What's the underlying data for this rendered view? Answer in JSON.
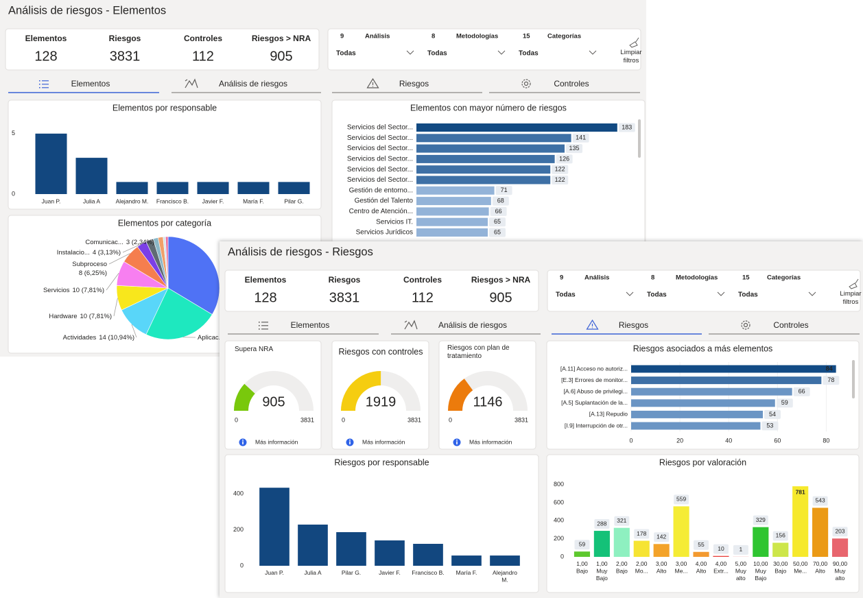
{
  "back": {
    "title": "Análisis de riesgos - Elementos",
    "kpis": [
      {
        "label": "Elementos",
        "value": 128
      },
      {
        "label": "Riesgos",
        "value": 3831
      },
      {
        "label": "Controles",
        "value": 112
      },
      {
        "label": "Riesgos > NRA",
        "value": 905
      }
    ],
    "filters": [
      {
        "count": 9,
        "label": "Análisis",
        "selected": "Todas"
      },
      {
        "count": 8,
        "label": "Metodologías",
        "selected": "Todas"
      },
      {
        "count": 15,
        "label": "Categorías",
        "selected": "Todas"
      }
    ],
    "clear_filters": [
      "Limpiar",
      "filtros"
    ],
    "tabs": [
      "Elementos",
      "Análisis de riesgos",
      "Riesgos",
      "Controles"
    ],
    "charts": [
      {
        "type": "bar",
        "title": "Elementos por responsable",
        "categories": [
          "Juan P.",
          "Julia A",
          "Alejandro M.",
          "Francisco B.",
          "Javier F.",
          "María F.",
          "Pilar G."
        ],
        "values": [
          5,
          3,
          1,
          1,
          1,
          1,
          1
        ],
        "color": "#12477f",
        "ylim": [
          0,
          5.5
        ],
        "yticks": [
          0,
          5
        ]
      },
      {
        "type": "pie",
        "title": "Elementos por categoría",
        "categories": [
          null,
          "Aplicac...",
          "Actividades",
          "Hardware",
          "Servicios",
          "Subproceso",
          "Instalacio...",
          "Comunicac...",
          null,
          null,
          null,
          null
        ],
        "values": [
          43,
          30,
          14,
          10,
          10,
          8,
          4,
          3,
          2,
          2,
          1,
          1
        ],
        "value_labels": [
          null,
          null,
          "14 (10,94%)",
          "10 (7,81%)",
          "10 (7,81%)",
          "8 (6,25%)",
          "4 (3,13%)",
          "3 (2,34%)",
          null,
          null,
          null,
          null
        ],
        "colors": [
          "#4f72f5",
          "#1ee8bf",
          "#59d6f9",
          "#f8e71c",
          "#f77ff0",
          "#f57e4e",
          "#7b3fe6",
          "#5f6b73",
          "#8bb7c7",
          "#f0a06a",
          "#d6e6ef",
          "#e96fa0"
        ]
      },
      {
        "type": "bar",
        "orientation": "horizontal",
        "title": "Elementos con mayor número de riesgos",
        "categories": [
          "Servicios del Sector...",
          "Servicios del Sector...",
          "Servicios del Sector...",
          "Servicios del Sector...",
          "Servicios del Sector...",
          "Servicios del Sector...",
          "Gestión de entorno...",
          "Gestión del Talento",
          "Centro de Atención...",
          "Servicios IT.",
          "Servicios Jurídicos"
        ],
        "values": [
          183,
          141,
          135,
          126,
          122,
          122,
          71,
          68,
          66,
          65,
          65
        ],
        "colors": [
          "#124a82",
          "#3e70a5",
          "#3e70a5",
          "#3e70a5",
          "#3e70a5",
          "#3e70a5",
          "#93b3d8",
          "#93b3d8",
          "#93b3d8",
          "#93b3d8",
          "#93b3d8"
        ],
        "xlim": [
          0,
          200
        ]
      }
    ]
  },
  "front": {
    "title": "Análisis de riesgos - Riesgos",
    "kpis": [
      {
        "label": "Elementos",
        "value": 128
      },
      {
        "label": "Riesgos",
        "value": 3831
      },
      {
        "label": "Controles",
        "value": 112
      },
      {
        "label": "Riesgos > NRA",
        "value": 905
      }
    ],
    "filters": [
      {
        "count": 9,
        "label": "Análisis",
        "selected": "Todas"
      },
      {
        "count": 8,
        "label": "Metodologías",
        "selected": "Todas"
      },
      {
        "count": 15,
        "label": "Categorías",
        "selected": "Todas"
      }
    ],
    "clear_filters": [
      "Limpiar",
      "filtros"
    ],
    "tabs": [
      "Elementos",
      "Análisis de riesgos",
      "Riesgos",
      "Controles"
    ],
    "charts": [
      {
        "type": "gauge",
        "title": [
          "Supera NRA"
        ],
        "value": 905,
        "min": 0,
        "max": 3831,
        "color": "#79c80c",
        "more_info": "Más información"
      },
      {
        "type": "gauge",
        "title": [
          "Riesgos con controles"
        ],
        "value": 1919,
        "min": 0,
        "max": 3831,
        "color": "#f5cd10",
        "more_info": "Más información"
      },
      {
        "type": "gauge",
        "title": [
          "Riesgos con plan de",
          "tratamiento"
        ],
        "value": 1146,
        "min": 0,
        "max": 3831,
        "color": "#ec7b0c",
        "more_info": "Más información"
      },
      {
        "type": "bar",
        "orientation": "horizontal",
        "title": "Riesgos asociados a más elementos",
        "categories": [
          "[A.11] Acceso no autoriz...",
          "[E.3] Errores de monitor...",
          "[A.6] Abuso de privilegi...",
          "[A.5] Suplantación de la...",
          "[A.13] Repudio",
          "[I.9] Interrupción de otr..."
        ],
        "values": [
          84,
          78,
          66,
          59,
          54,
          53
        ],
        "colors": [
          "#124b85",
          "#3e70a6",
          "#6b95c4",
          "#6b95c4",
          "#6b95c4",
          "#6b95c4"
        ],
        "xlim": [
          0,
          90
        ],
        "xticks": [
          0,
          20,
          40,
          60,
          80
        ]
      },
      {
        "type": "bar",
        "title": "Riesgos por responsable",
        "categories": [
          [
            "Juan P."
          ],
          [
            "Julia A"
          ],
          [
            "Pilar G."
          ],
          [
            "Javier F."
          ],
          [
            "Francisco B."
          ],
          [
            "María F."
          ],
          [
            "Alejandro",
            "M."
          ]
        ],
        "values": [
          434,
          229,
          187,
          141,
          122,
          57,
          57
        ],
        "color": "#12477f",
        "ylim": [
          0,
          450
        ],
        "yticks": [
          0,
          200,
          400
        ]
      },
      {
        "type": "bar",
        "title": "Riesgos por valoración",
        "categories": [
          [
            "1,00",
            "Bajo"
          ],
          [
            "1,00",
            "Muy",
            "Bajo"
          ],
          [
            "2,00",
            "Bajo"
          ],
          [
            "2,00",
            "Mo..."
          ],
          [
            "3,00",
            "Alto"
          ],
          [
            "3,00",
            "Me..."
          ],
          [
            "4,00",
            "Alto"
          ],
          [
            "4,00",
            "Extr..."
          ],
          [
            "5,00",
            "Muy",
            "alto"
          ],
          [
            "10,00",
            "Muy",
            "Bajo"
          ],
          [
            "30,00",
            "Bajo"
          ],
          [
            "50,00",
            "Me..."
          ],
          [
            "70,00",
            "Alto"
          ],
          [
            "90,00",
            "Muy",
            "alto"
          ]
        ],
        "values": [
          59,
          288,
          321,
          178,
          142,
          559,
          55,
          10,
          1,
          329,
          156,
          781,
          543,
          203
        ],
        "colors": [
          "#5ec82e",
          "#14c178",
          "#8ef0c0",
          "#f6e433",
          "#f3a32a",
          "#f5ec35",
          "#f39a30",
          "#e8413c",
          "#e64646",
          "#2fc531",
          "#cde64a",
          "#f6e92c",
          "#eb9a15",
          "#e8656e"
        ],
        "ylim": [
          0,
          850
        ],
        "yticks": [
          0,
          200,
          400,
          600,
          800
        ]
      }
    ]
  }
}
